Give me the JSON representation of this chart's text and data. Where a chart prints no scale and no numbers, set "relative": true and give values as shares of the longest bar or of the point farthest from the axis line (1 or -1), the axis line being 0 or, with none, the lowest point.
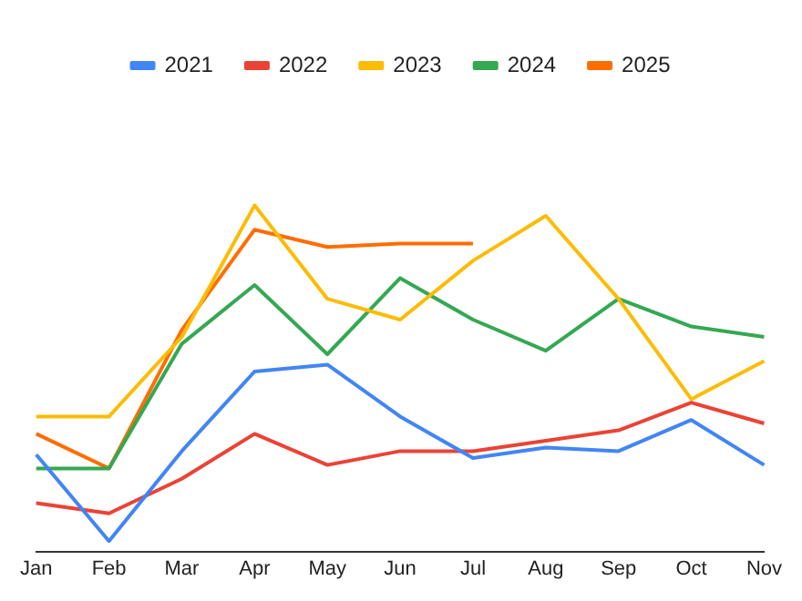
{
  "chart_data": {
    "type": "line",
    "relative": true,
    "categories": [
      "Jan",
      "Feb",
      "Mar",
      "Apr",
      "May",
      "Jun",
      "Jul",
      "Aug",
      "Sep",
      "Oct",
      "Nov"
    ],
    "series": [
      {
        "name": "2021",
        "color": "#4285f4",
        "values": [
          0.28,
          0.03,
          0.29,
          0.52,
          0.54,
          0.39,
          0.27,
          0.3,
          0.29,
          0.38,
          0.25
        ]
      },
      {
        "name": "2022",
        "color": "#ea4335",
        "values": [
          0.14,
          0.11,
          0.21,
          0.34,
          0.25,
          0.29,
          0.29,
          0.32,
          0.35,
          0.43,
          0.37
        ]
      },
      {
        "name": "2023",
        "color": "#fbbc04",
        "values": [
          0.39,
          0.39,
          0.62,
          1,
          0.73,
          0.67,
          0.84,
          0.97,
          0.73,
          0.44,
          0.55
        ]
      },
      {
        "name": "2024",
        "color": "#34a853",
        "values": [
          0.24,
          0.24,
          0.6,
          0.77,
          0.57,
          0.79,
          0.67,
          0.58,
          0.73,
          0.65,
          0.62
        ]
      },
      {
        "name": "2025",
        "color": "#ff6d01",
        "values": [
          0.34,
          0.24,
          0.64,
          0.93,
          0.88,
          0.89,
          0.89,
          null,
          null,
          null,
          null
        ]
      }
    ],
    "legend": "top",
    "marker": "none",
    "line_style": "solid"
  }
}
